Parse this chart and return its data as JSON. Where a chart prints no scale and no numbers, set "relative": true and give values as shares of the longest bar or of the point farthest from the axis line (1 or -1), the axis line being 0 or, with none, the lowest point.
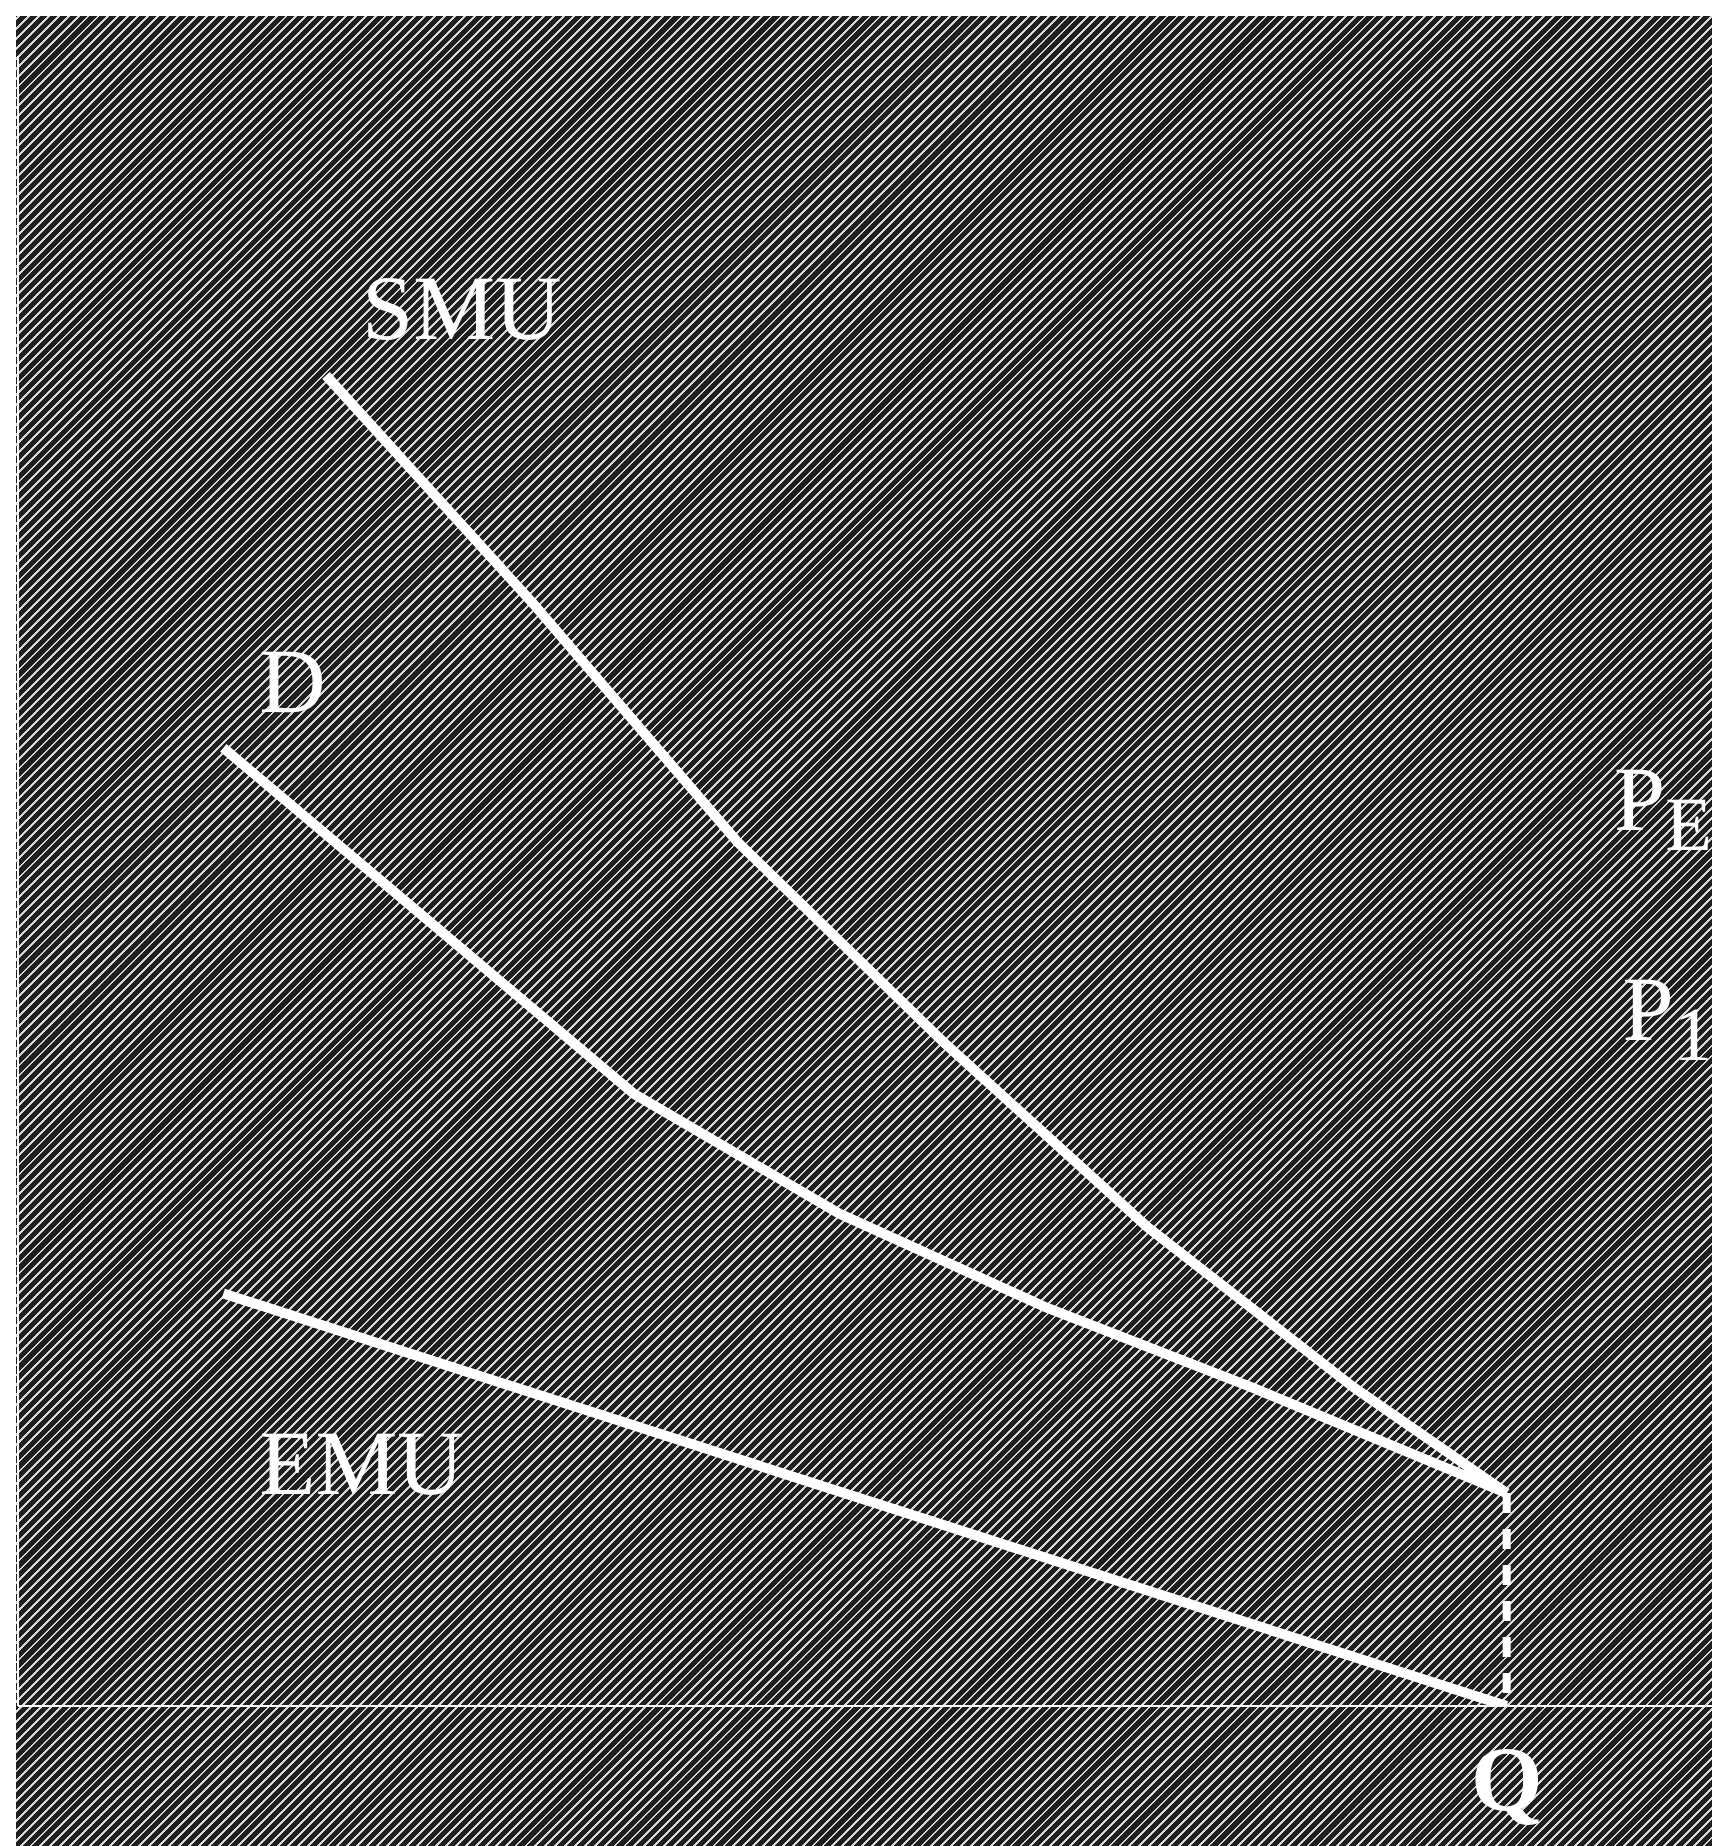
{
  "chart_data": {
    "type": "line",
    "relative": true,
    "marker": "none",
    "categories": [
      null,
      null,
      null,
      null,
      null,
      null,
      null,
      null,
      null,
      null,
      null,
      null,
      null,
      null,
      null,
      null,
      null,
      null,
      null,
      null,
      null,
      null,
      null,
      null,
      null,
      null,
      null,
      null,
      null,
      null,
      null,
      null,
      null,
      null
    ],
    "series": [
      {
        "name": "SMU",
        "color": "#ffffff",
        "values": [
          null,
          null,
          null,
          null,
          null,
          null,
          1.0,
          null,
          null,
          null,
          0.83,
          null,
          null,
          null,
          0.65,
          null,
          null,
          null,
          0.5,
          null,
          null,
          null,
          0.36,
          null,
          null,
          null,
          0.24,
          null,
          null,
          0.16,
          null,
          null,
          null,
          null
        ]
      },
      {
        "name": "D",
        "color": "#ffffff",
        "values": [
          null,
          null,
          null,
          null,
          0.72,
          null,
          null,
          null,
          0.59,
          null,
          null,
          null,
          0.46,
          null,
          null,
          null,
          0.37,
          null,
          null,
          null,
          0.3,
          null,
          null,
          null,
          0.24,
          null,
          null,
          null,
          null,
          0.16,
          null,
          null,
          null,
          null
        ]
      },
      {
        "name": "EMU",
        "color": "#ffffff",
        "values": [
          null,
          null,
          null,
          null,
          0.31,
          null,
          null,
          null,
          null,
          null,
          null,
          null,
          null,
          null,
          null,
          null,
          null,
          null,
          null,
          null,
          null,
          null,
          null,
          null,
          null,
          null,
          null,
          null,
          null,
          0.0,
          null,
          null,
          null,
          null
        ]
      }
    ],
    "annotations": [
      "P$_{E}$",
      "P$_{1}$",
      "Q"
    ]
  }
}
